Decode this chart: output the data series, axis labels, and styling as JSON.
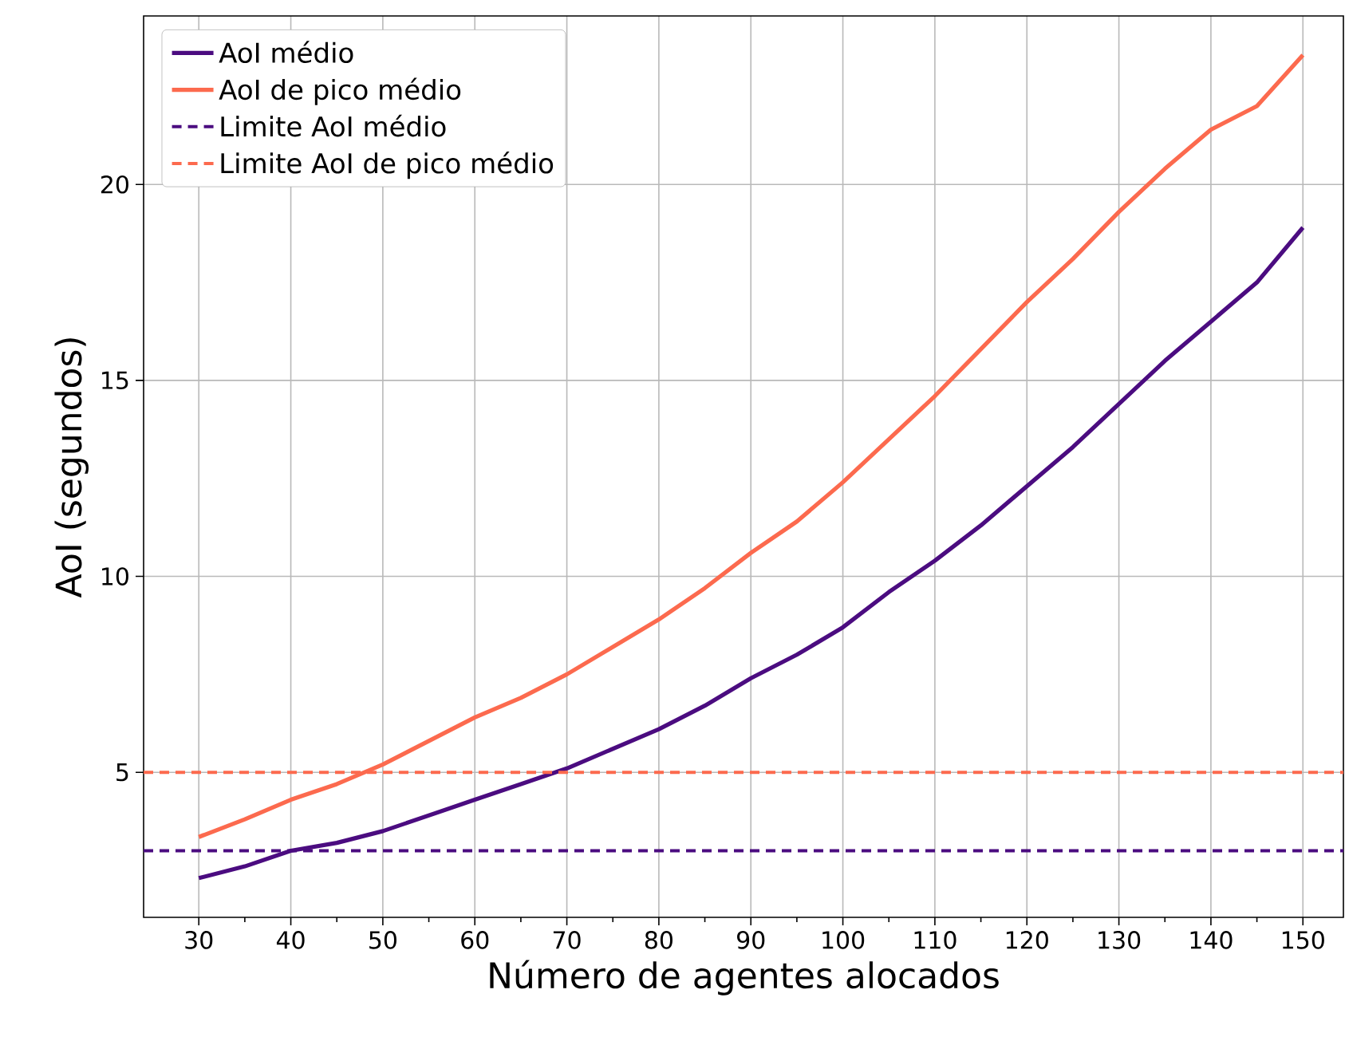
{
  "chart_data": {
    "type": "line",
    "xlabel": "Número de agentes alocados",
    "ylabel": "AoI (segundos)",
    "x": [
      30,
      35,
      40,
      45,
      50,
      55,
      60,
      65,
      70,
      75,
      80,
      85,
      90,
      95,
      100,
      105,
      110,
      115,
      120,
      125,
      130,
      135,
      140,
      145,
      150
    ],
    "series": [
      {
        "name": "AoI médio",
        "color": "#4b0c80",
        "values": [
          2.3,
          2.6,
          3.0,
          3.2,
          3.5,
          3.9,
          4.3,
          4.7,
          5.1,
          5.6,
          6.1,
          6.7,
          7.4,
          8.0,
          8.7,
          9.6,
          10.4,
          11.3,
          12.3,
          13.3,
          14.4,
          15.5,
          16.5,
          17.5,
          18.9
        ]
      },
      {
        "name": "AoI de pico médio",
        "color": "#fc6a4e",
        "values": [
          3.35,
          3.8,
          4.3,
          4.7,
          5.2,
          5.8,
          6.4,
          6.9,
          7.5,
          8.2,
          8.9,
          9.7,
          10.6,
          11.4,
          12.4,
          13.5,
          14.6,
          15.8,
          17.0,
          18.1,
          19.3,
          20.4,
          21.4,
          22.0,
          23.3
        ]
      }
    ],
    "ref_lines": [
      {
        "axis": "y",
        "value": 3,
        "label": "Limite AoI médio",
        "color": "#4b0c80",
        "line_style": "dashed"
      },
      {
        "axis": "y",
        "value": 5,
        "label": "Limite AoI de pico médio",
        "color": "#fc6a4e",
        "line_style": "dashed"
      }
    ],
    "xlim": [
      24,
      154.4
    ],
    "ylim": [
      1.3,
      24.3
    ],
    "xticks": [
      30,
      {
        "value": 35,
        "label": null
      },
      40,
      {
        "value": 45,
        "label": null
      },
      50,
      {
        "value": 55,
        "label": null
      },
      60,
      {
        "value": 65,
        "label": null
      },
      70,
      {
        "value": 75,
        "label": null
      },
      80,
      {
        "value": 85,
        "label": null
      },
      90,
      {
        "value": 95,
        "label": null
      },
      100,
      {
        "value": 105,
        "label": null
      },
      110,
      {
        "value": 115,
        "label": null
      },
      120,
      {
        "value": 125,
        "label": null
      },
      130,
      {
        "value": 135,
        "label": null
      },
      140,
      {
        "value": 145,
        "label": null
      },
      150
    ],
    "yticks": [
      5,
      10,
      15,
      20
    ],
    "grid": true,
    "legend": "top left",
    "marker": "none",
    "line_style": "solid"
  }
}
